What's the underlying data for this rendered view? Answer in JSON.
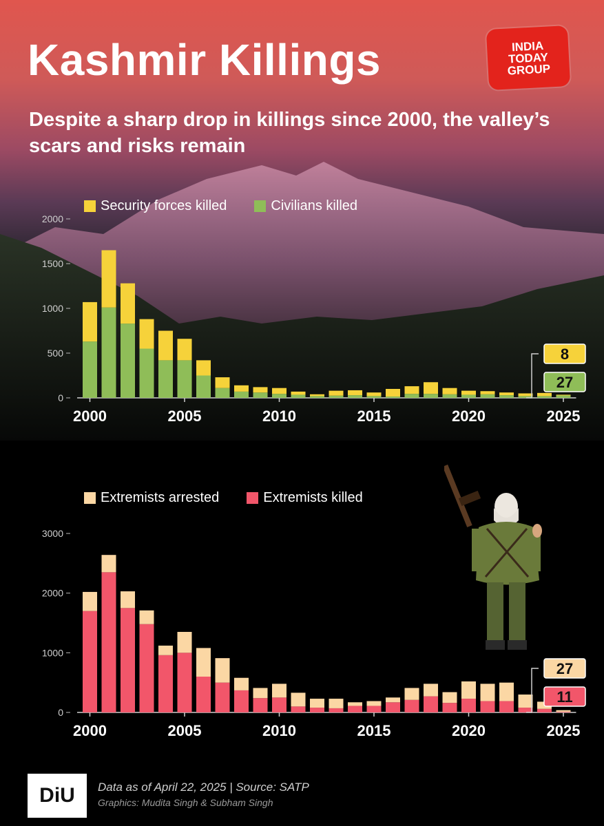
{
  "header": {
    "title": "Kashmir Killings",
    "subtitle": "Despite a sharp drop in killings since 2000, the valley’s scars and risks remain",
    "logo_lines": [
      "INDIA",
      "TODAY",
      "GROUP"
    ]
  },
  "colors": {
    "security": "#f6d23a",
    "civilians": "#8fbd58",
    "arrested": "#fbd7a4",
    "killed": "#f2566a",
    "brand": "#e3231c"
  },
  "chart_data": [
    {
      "type": "bar",
      "stacked": true,
      "legend": [
        "Security forces killed",
        "Civilians killed"
      ],
      "legend_placement": "top-left",
      "x": [
        2000,
        2001,
        2002,
        2003,
        2004,
        2005,
        2006,
        2007,
        2008,
        2009,
        2010,
        2011,
        2012,
        2013,
        2014,
        2015,
        2016,
        2017,
        2018,
        2019,
        2020,
        2021,
        2022,
        2023,
        2024,
        2025
      ],
      "x_ticks": [
        "2000",
        "2005",
        "2010",
        "2015",
        "2020",
        "2025"
      ],
      "y_ticks": [
        "0",
        "500",
        "1000",
        "1500",
        "2000"
      ],
      "ylim": [
        0,
        2000
      ],
      "series": [
        {
          "name": "Civilians killed",
          "values": [
            630,
            1010,
            830,
            550,
            420,
            420,
            250,
            110,
            70,
            60,
            45,
            35,
            20,
            25,
            30,
            20,
            15,
            45,
            45,
            40,
            35,
            40,
            30,
            20,
            20,
            27
          ]
        },
        {
          "name": "Security forces killed",
          "values": [
            440,
            640,
            450,
            330,
            330,
            240,
            170,
            120,
            70,
            60,
            65,
            35,
            20,
            55,
            55,
            40,
            85,
            85,
            130,
            70,
            45,
            35,
            30,
            30,
            35,
            8
          ]
        }
      ],
      "annotations": [
        "8",
        "27"
      ]
    },
    {
      "type": "bar",
      "stacked": true,
      "legend": [
        "Extremists arrested",
        "Extremists killed"
      ],
      "legend_placement": "top-left",
      "x": [
        2000,
        2001,
        2002,
        2003,
        2004,
        2005,
        2006,
        2007,
        2008,
        2009,
        2010,
        2011,
        2012,
        2013,
        2014,
        2015,
        2016,
        2017,
        2018,
        2019,
        2020,
        2021,
        2022,
        2023,
        2024,
        2025
      ],
      "x_ticks": [
        "2000",
        "2005",
        "2010",
        "2015",
        "2020",
        "2025"
      ],
      "y_ticks": [
        "0",
        "1000",
        "2000",
        "3000"
      ],
      "ylim": [
        0,
        3000
      ],
      "series": [
        {
          "name": "Extremists killed",
          "values": [
            1700,
            2350,
            1750,
            1480,
            960,
            1000,
            600,
            500,
            370,
            240,
            250,
            100,
            80,
            70,
            110,
            110,
            170,
            210,
            270,
            160,
            230,
            190,
            190,
            80,
            60,
            11
          ]
        },
        {
          "name": "Extremists arrested",
          "values": [
            320,
            290,
            280,
            230,
            160,
            350,
            480,
            410,
            210,
            170,
            230,
            230,
            150,
            160,
            60,
            80,
            80,
            200,
            210,
            180,
            290,
            290,
            310,
            220,
            120,
            27
          ]
        }
      ],
      "annotations": [
        "27",
        "11"
      ]
    }
  ],
  "footer": {
    "brand": "DiU",
    "source": "Data as of April 22, 2025 | Source: SATP",
    "credit": "Graphics: Mudita Singh & Subham Singh"
  }
}
